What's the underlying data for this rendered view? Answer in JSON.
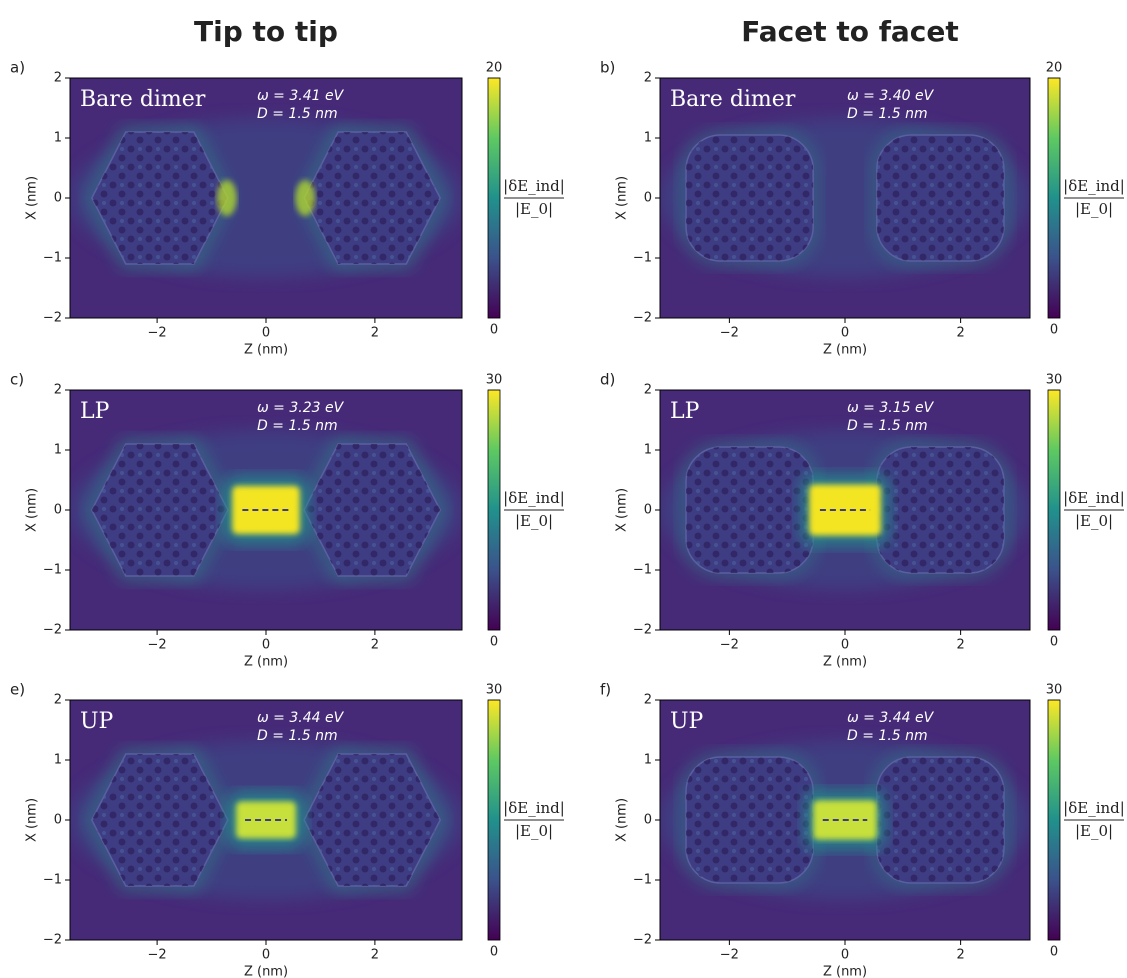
{
  "column_titles": [
    "Tip to tip",
    "Facet to facet"
  ],
  "chart_data": [
    {
      "type": "heatmap",
      "panel_label": "a)",
      "label": "Bare dimer",
      "annotations": [
        "ω = 3.41 eV",
        "D = 1.5 nm"
      ],
      "xlabel": "Z (nm)",
      "ylabel": "X (nm)",
      "xlim": [
        -3.6,
        3.6
      ],
      "ylim": [
        -2,
        2
      ],
      "xticks": [
        {
          "value": -2,
          "label": "−2"
        },
        0,
        2
      ],
      "yticks": [
        {
          "value": -2,
          "label": "−2"
        },
        {
          "value": -1,
          "label": "−1"
        },
        0,
        1,
        2
      ],
      "clim": [
        0,
        20
      ],
      "cticks": [
        0,
        20
      ],
      "colorbar_label": {
        "numerator": "|δE_ind|",
        "denominator": "|E_0|"
      }
    },
    {
      "type": "heatmap",
      "panel_label": "b)",
      "label": "Bare dimer",
      "annotations": [
        "ω = 3.40 eV",
        "D = 1.5 nm"
      ],
      "xlabel": "Z (nm)",
      "ylabel": "X (nm)",
      "xlim": [
        -3.2,
        3.2
      ],
      "ylim": [
        -2,
        2
      ],
      "xticks": [
        {
          "value": -2,
          "label": "−2"
        },
        0,
        2
      ],
      "yticks": [
        {
          "value": -2,
          "label": "−2"
        },
        {
          "value": -1,
          "label": "−1"
        },
        0,
        1,
        2
      ],
      "clim": [
        0,
        20
      ],
      "cticks": [
        0,
        20
      ],
      "colorbar_label": {
        "numerator": "|δE_ind|",
        "denominator": "|E_0|"
      }
    },
    {
      "type": "heatmap",
      "panel_label": "c)",
      "label": "LP",
      "annotations": [
        "ω = 3.23 eV",
        "D = 1.5 nm"
      ],
      "xlabel": "Z (nm)",
      "ylabel": "X (nm)",
      "xlim": [
        -3.6,
        3.6
      ],
      "ylim": [
        -2,
        2
      ],
      "xticks": [
        {
          "value": -2,
          "label": "−2"
        },
        0,
        2
      ],
      "yticks": [
        {
          "value": -2,
          "label": "−2"
        },
        {
          "value": -1,
          "label": "−1"
        },
        0,
        1,
        2
      ],
      "clim": [
        0,
        30
      ],
      "cticks": [
        0,
        30
      ],
      "colorbar_label": {
        "numerator": "|δE_ind|",
        "denominator": "|E_0|"
      }
    },
    {
      "type": "heatmap",
      "panel_label": "d)",
      "label": "LP",
      "annotations": [
        "ω = 3.15 eV",
        "D = 1.5 nm"
      ],
      "xlabel": "Z (nm)",
      "ylabel": "X (nm)",
      "xlim": [
        -3.2,
        3.2
      ],
      "ylim": [
        -2,
        2
      ],
      "xticks": [
        {
          "value": -2,
          "label": "−2"
        },
        0,
        2
      ],
      "yticks": [
        {
          "value": -2,
          "label": "−2"
        },
        {
          "value": -1,
          "label": "−1"
        },
        0,
        1,
        2
      ],
      "clim": [
        0,
        30
      ],
      "cticks": [
        0,
        30
      ],
      "colorbar_label": {
        "numerator": "|δE_ind|",
        "denominator": "|E_0|"
      }
    },
    {
      "type": "heatmap",
      "panel_label": "e)",
      "label": "UP",
      "annotations": [
        "ω = 3.44 eV",
        "D = 1.5 nm"
      ],
      "xlabel": "Z (nm)",
      "ylabel": "X (nm)",
      "xlim": [
        -3.6,
        3.6
      ],
      "ylim": [
        -2,
        2
      ],
      "xticks": [
        {
          "value": -2,
          "label": "−2"
        },
        0,
        2
      ],
      "yticks": [
        {
          "value": -2,
          "label": "−2"
        },
        {
          "value": -1,
          "label": "−1"
        },
        0,
        1,
        2
      ],
      "clim": [
        0,
        30
      ],
      "cticks": [
        0,
        30
      ],
      "colorbar_label": {
        "numerator": "|δE_ind|",
        "denominator": "|E_0|"
      }
    },
    {
      "type": "heatmap",
      "panel_label": "f)",
      "label": "UP",
      "annotations": [
        "ω = 3.44 eV",
        "D = 1.5 nm"
      ],
      "xlabel": "Z (nm)",
      "ylabel": "X (nm)",
      "xlim": [
        -3.2,
        3.2
      ],
      "ylim": [
        -2,
        2
      ],
      "xticks": [
        {
          "value": -2,
          "label": "−2"
        },
        0,
        2
      ],
      "yticks": [
        {
          "value": -2,
          "label": "−2"
        },
        {
          "value": -1,
          "label": "−1"
        },
        0,
        1,
        2
      ],
      "clim": [
        0,
        30
      ],
      "cticks": [
        0,
        30
      ],
      "colorbar_label": {
        "numerator": "|δE_ind|",
        "denominator": "|E_0|"
      }
    }
  ]
}
